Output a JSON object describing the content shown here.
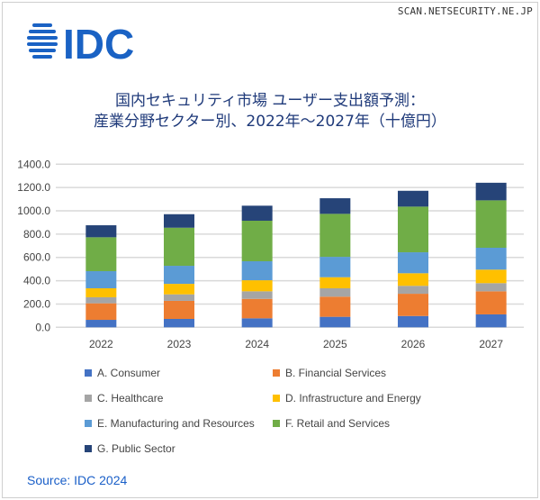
{
  "watermark": "SCAN.NETSECURITY.NE.JP",
  "logo_text": "IDC",
  "title_line1": "国内セキュリティ市場 ユーザー支出額予測：",
  "title_line2": "産業分野セクター別、2022年～2027年（十億円）",
  "source": "Source: IDC 2024",
  "chart_data": {
    "type": "bar",
    "stacked": true,
    "categories": [
      "2022",
      "2023",
      "2024",
      "2025",
      "2026",
      "2027"
    ],
    "ylim": [
      0,
      1400
    ],
    "yticks": [
      "0.0",
      "200.0",
      "400.0",
      "600.0",
      "800.0",
      "1000.0",
      "1200.0",
      "1400.0"
    ],
    "grid": true,
    "legend_placement": "bottom",
    "series": [
      {
        "name": "A. Consumer",
        "color": "#4472C4",
        "values": [
          64,
          72,
          77,
          90,
          97,
          111
        ]
      },
      {
        "name": "B. Financial Services",
        "color": "#ED7D31",
        "values": [
          142,
          155,
          167,
          173,
          191,
          198
        ]
      },
      {
        "name": "C. Healthcare",
        "color": "#A5A5A5",
        "values": [
          52,
          56,
          65,
          72,
          68,
          70
        ]
      },
      {
        "name": "D. Infrastructure and Energy",
        "color": "#FFC000",
        "values": [
          77,
          90,
          95,
          95,
          108,
          116
        ]
      },
      {
        "name": "E. Manufacturing and Resources",
        "color": "#5B9BD5",
        "values": [
          147,
          155,
          163,
          175,
          180,
          188
        ]
      },
      {
        "name": "F. Retail and Services",
        "color": "#70AD47",
        "values": [
          291,
          327,
          348,
          369,
          392,
          407
        ]
      },
      {
        "name": "G. Public Sector",
        "color": "#264478",
        "values": [
          103,
          116,
          129,
          134,
          136,
          151
        ]
      }
    ]
  }
}
